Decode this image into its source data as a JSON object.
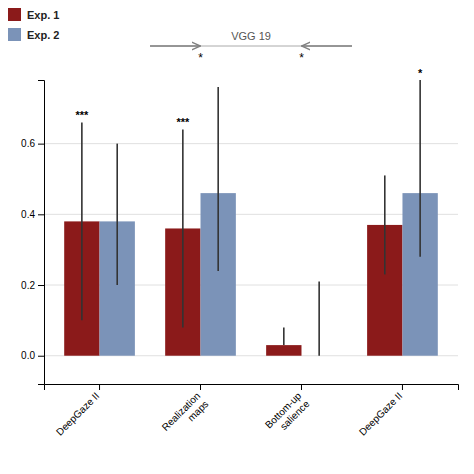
{
  "chart_data": {
    "type": "bar",
    "categories": [
      "DeepGaze II",
      "Realization\nmaps",
      "Bottom-up\nsalience",
      "DeepGaze II "
    ],
    "series": [
      {
        "name": "Exp. 1",
        "color": "#8B1A1A",
        "values": [
          0.38,
          0.36,
          0.03,
          0.37
        ],
        "err_up": [
          0.28,
          0.28,
          0.05,
          0.14
        ],
        "err_dn": [
          0.28,
          0.28,
          0.0,
          0.14
        ]
      },
      {
        "name": "Exp. 2",
        "color": "#7B93B8",
        "values": [
          0.38,
          0.46,
          0.0,
          0.46
        ],
        "err_up": [
          0.22,
          0.3,
          0.21,
          0.32
        ],
        "err_dn": [
          0.18,
          0.22,
          0.0,
          0.18
        ]
      }
    ],
    "ylim": [
      -0.08,
      0.78
    ],
    "yticks": [
      {
        "value": 0.0,
        "label": "0.0"
      },
      0.2,
      0.4,
      0.6
    ],
    "grid": true,
    "legend": "upper left",
    "annotations": [
      {
        "text": "***",
        "category": 0,
        "series": 0
      },
      {
        "text": "***",
        "category": 1,
        "series": 0
      },
      {
        "text": "*",
        "category": 3,
        "series": 1
      },
      {
        "text": "VGG 19",
        "categories": [
          1,
          2
        ],
        "marks": [
          "*",
          "*"
        ]
      }
    ]
  }
}
